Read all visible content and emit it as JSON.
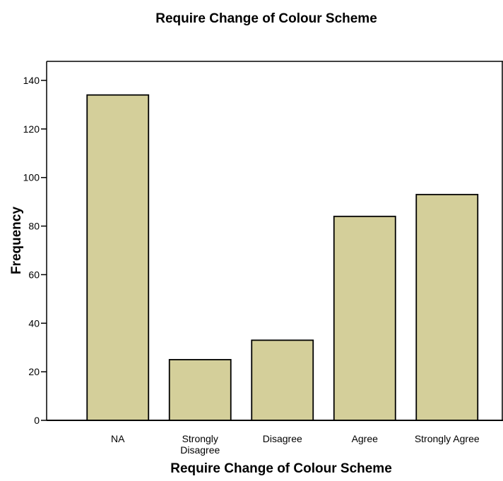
{
  "chart_data": {
    "type": "bar",
    "title": "Require Change of Colour Scheme",
    "xlabel": "Require Change of Colour Scheme",
    "ylabel": "Frequency",
    "categories": [
      [
        "NA"
      ],
      [
        "Strongly",
        "Disagree"
      ],
      [
        "Disagree"
      ],
      [
        "Agree"
      ],
      [
        "Strongly Agree"
      ]
    ],
    "values": [
      134,
      25,
      33,
      84,
      93
    ],
    "ylim": [
      0,
      140
    ],
    "yticks": [
      0,
      20,
      40,
      60,
      80,
      100,
      120,
      140
    ],
    "bar_color": "#d4cf9a",
    "edge_color": "#000000",
    "grid": false
  }
}
